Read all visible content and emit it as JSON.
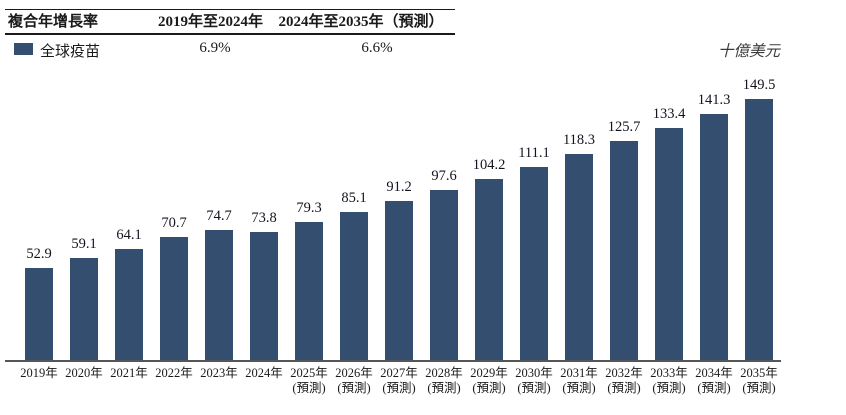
{
  "table": {
    "title": "複合年增長率",
    "period1": "2019年至2024年",
    "period2": "2024年至2035年（預測）",
    "series_label": "全球疫苗",
    "cagr1": "6.9%",
    "cagr2": "6.6%"
  },
  "unit_label": "十億美元",
  "colors": {
    "bar": "#334E6E",
    "axis_line": "#55565A",
    "text": "#1A1A1A"
  },
  "chart_data": {
    "type": "bar",
    "series": [
      {
        "name": "全球疫苗",
        "values": [
          52.9,
          59.1,
          64.1,
          70.7,
          74.7,
          73.8,
          79.3,
          85.1,
          91.2,
          97.6,
          104.2,
          111.1,
          118.3,
          125.7,
          133.4,
          141.3,
          149.5
        ]
      }
    ],
    "categories": [
      "2019年",
      "2020年",
      "2021年",
      "2022年",
      "2023年",
      "2024年",
      "2025年",
      "2026年",
      "2027年",
      "2028年",
      "2029年",
      "2030年",
      "2031年",
      "2032年",
      "2033年",
      "2034年",
      "2035年"
    ],
    "forecast_note": "(預測)",
    "forecast_from_index": 6,
    "ylabel": "十億美元",
    "ylim": [
      0,
      160
    ],
    "grid": false,
    "legend_position": "top-left",
    "data_labels": true
  }
}
